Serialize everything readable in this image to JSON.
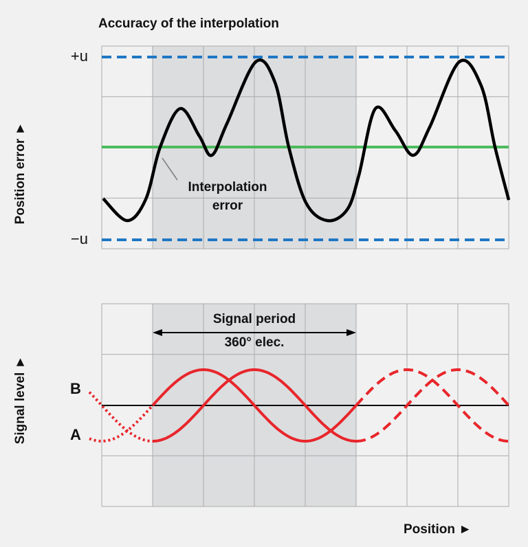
{
  "title": "Accuracy of the interpolation",
  "top_panel": {
    "y_axis_label": "Position error ►",
    "upper_limit": "+u",
    "lower_limit": "−u",
    "annotation": [
      "Interpolation",
      "error"
    ]
  },
  "bottom_panel": {
    "y_axis_label": "Signal level ►",
    "period_label": "Signal period",
    "period_value": "360° elec.",
    "signal_b": "B",
    "signal_a": "A",
    "x_axis_label": "Position ►"
  }
}
